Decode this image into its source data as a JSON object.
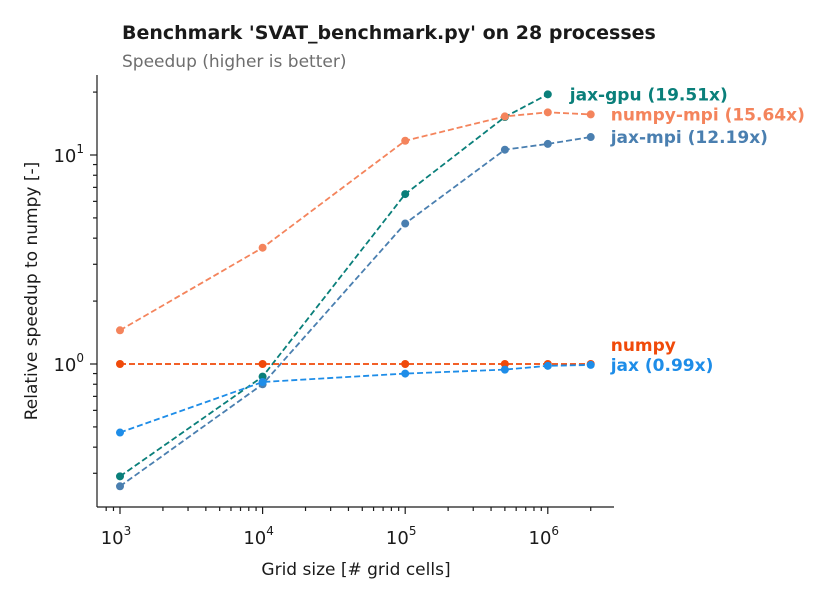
{
  "chart_data": {
    "type": "line",
    "title": "Benchmark 'SVAT_benchmark.py' on 28 processes",
    "subtitle": "Speedup (higher is better)",
    "xlabel": "Grid size [# grid cells]",
    "ylabel": "Relative speedup to numpy [-]",
    "xscale": "log",
    "yscale": "log",
    "xlim": [
      700,
      3000000
    ],
    "ylim": [
      0.2,
      25
    ],
    "x_ticks": [
      {
        "value": 1000,
        "base": "10",
        "exp": "3"
      },
      {
        "value": 10000,
        "base": "10",
        "exp": "4"
      },
      {
        "value": 100000,
        "base": "10",
        "exp": "5"
      },
      {
        "value": 1000000,
        "base": "10",
        "exp": "6"
      }
    ],
    "y_ticks": [
      {
        "value": 1,
        "base": "10",
        "exp": "0"
      },
      {
        "value": 10,
        "base": "10",
        "exp": "1"
      }
    ],
    "grid": false,
    "legend": "inline labels at line ends",
    "series": [
      {
        "name": "jax-gpu (19.51x)",
        "color": "#0a7f7a",
        "x": [
          1000,
          10000,
          100000,
          500000,
          1000000
        ],
        "y": [
          0.29,
          0.87,
          6.5,
          15.2,
          19.51
        ]
      },
      {
        "name": "numpy-mpi (15.64x)",
        "color": "#f4845c",
        "x": [
          1000,
          10000,
          100000,
          500000,
          1000000,
          2000000
        ],
        "y": [
          1.45,
          3.6,
          11.7,
          15.3,
          16.0,
          15.64
        ]
      },
      {
        "name": "jax-mpi (12.19x)",
        "color": "#4a7fb0",
        "x": [
          1000,
          10000,
          100000,
          500000,
          1000000,
          2000000
        ],
        "y": [
          0.26,
          0.8,
          4.7,
          10.6,
          11.3,
          12.19
        ]
      },
      {
        "name": "numpy",
        "color": "#f04a0a",
        "x": [
          1000,
          10000,
          100000,
          500000,
          1000000,
          2000000
        ],
        "y": [
          1.0,
          1.0,
          1.0,
          1.0,
          1.0,
          1.0
        ]
      },
      {
        "name": "jax (0.99x)",
        "color": "#1e8de8",
        "x": [
          1000,
          10000,
          100000,
          500000,
          1000000,
          2000000
        ],
        "y": [
          0.47,
          0.82,
          0.9,
          0.94,
          0.98,
          0.99
        ]
      }
    ]
  }
}
